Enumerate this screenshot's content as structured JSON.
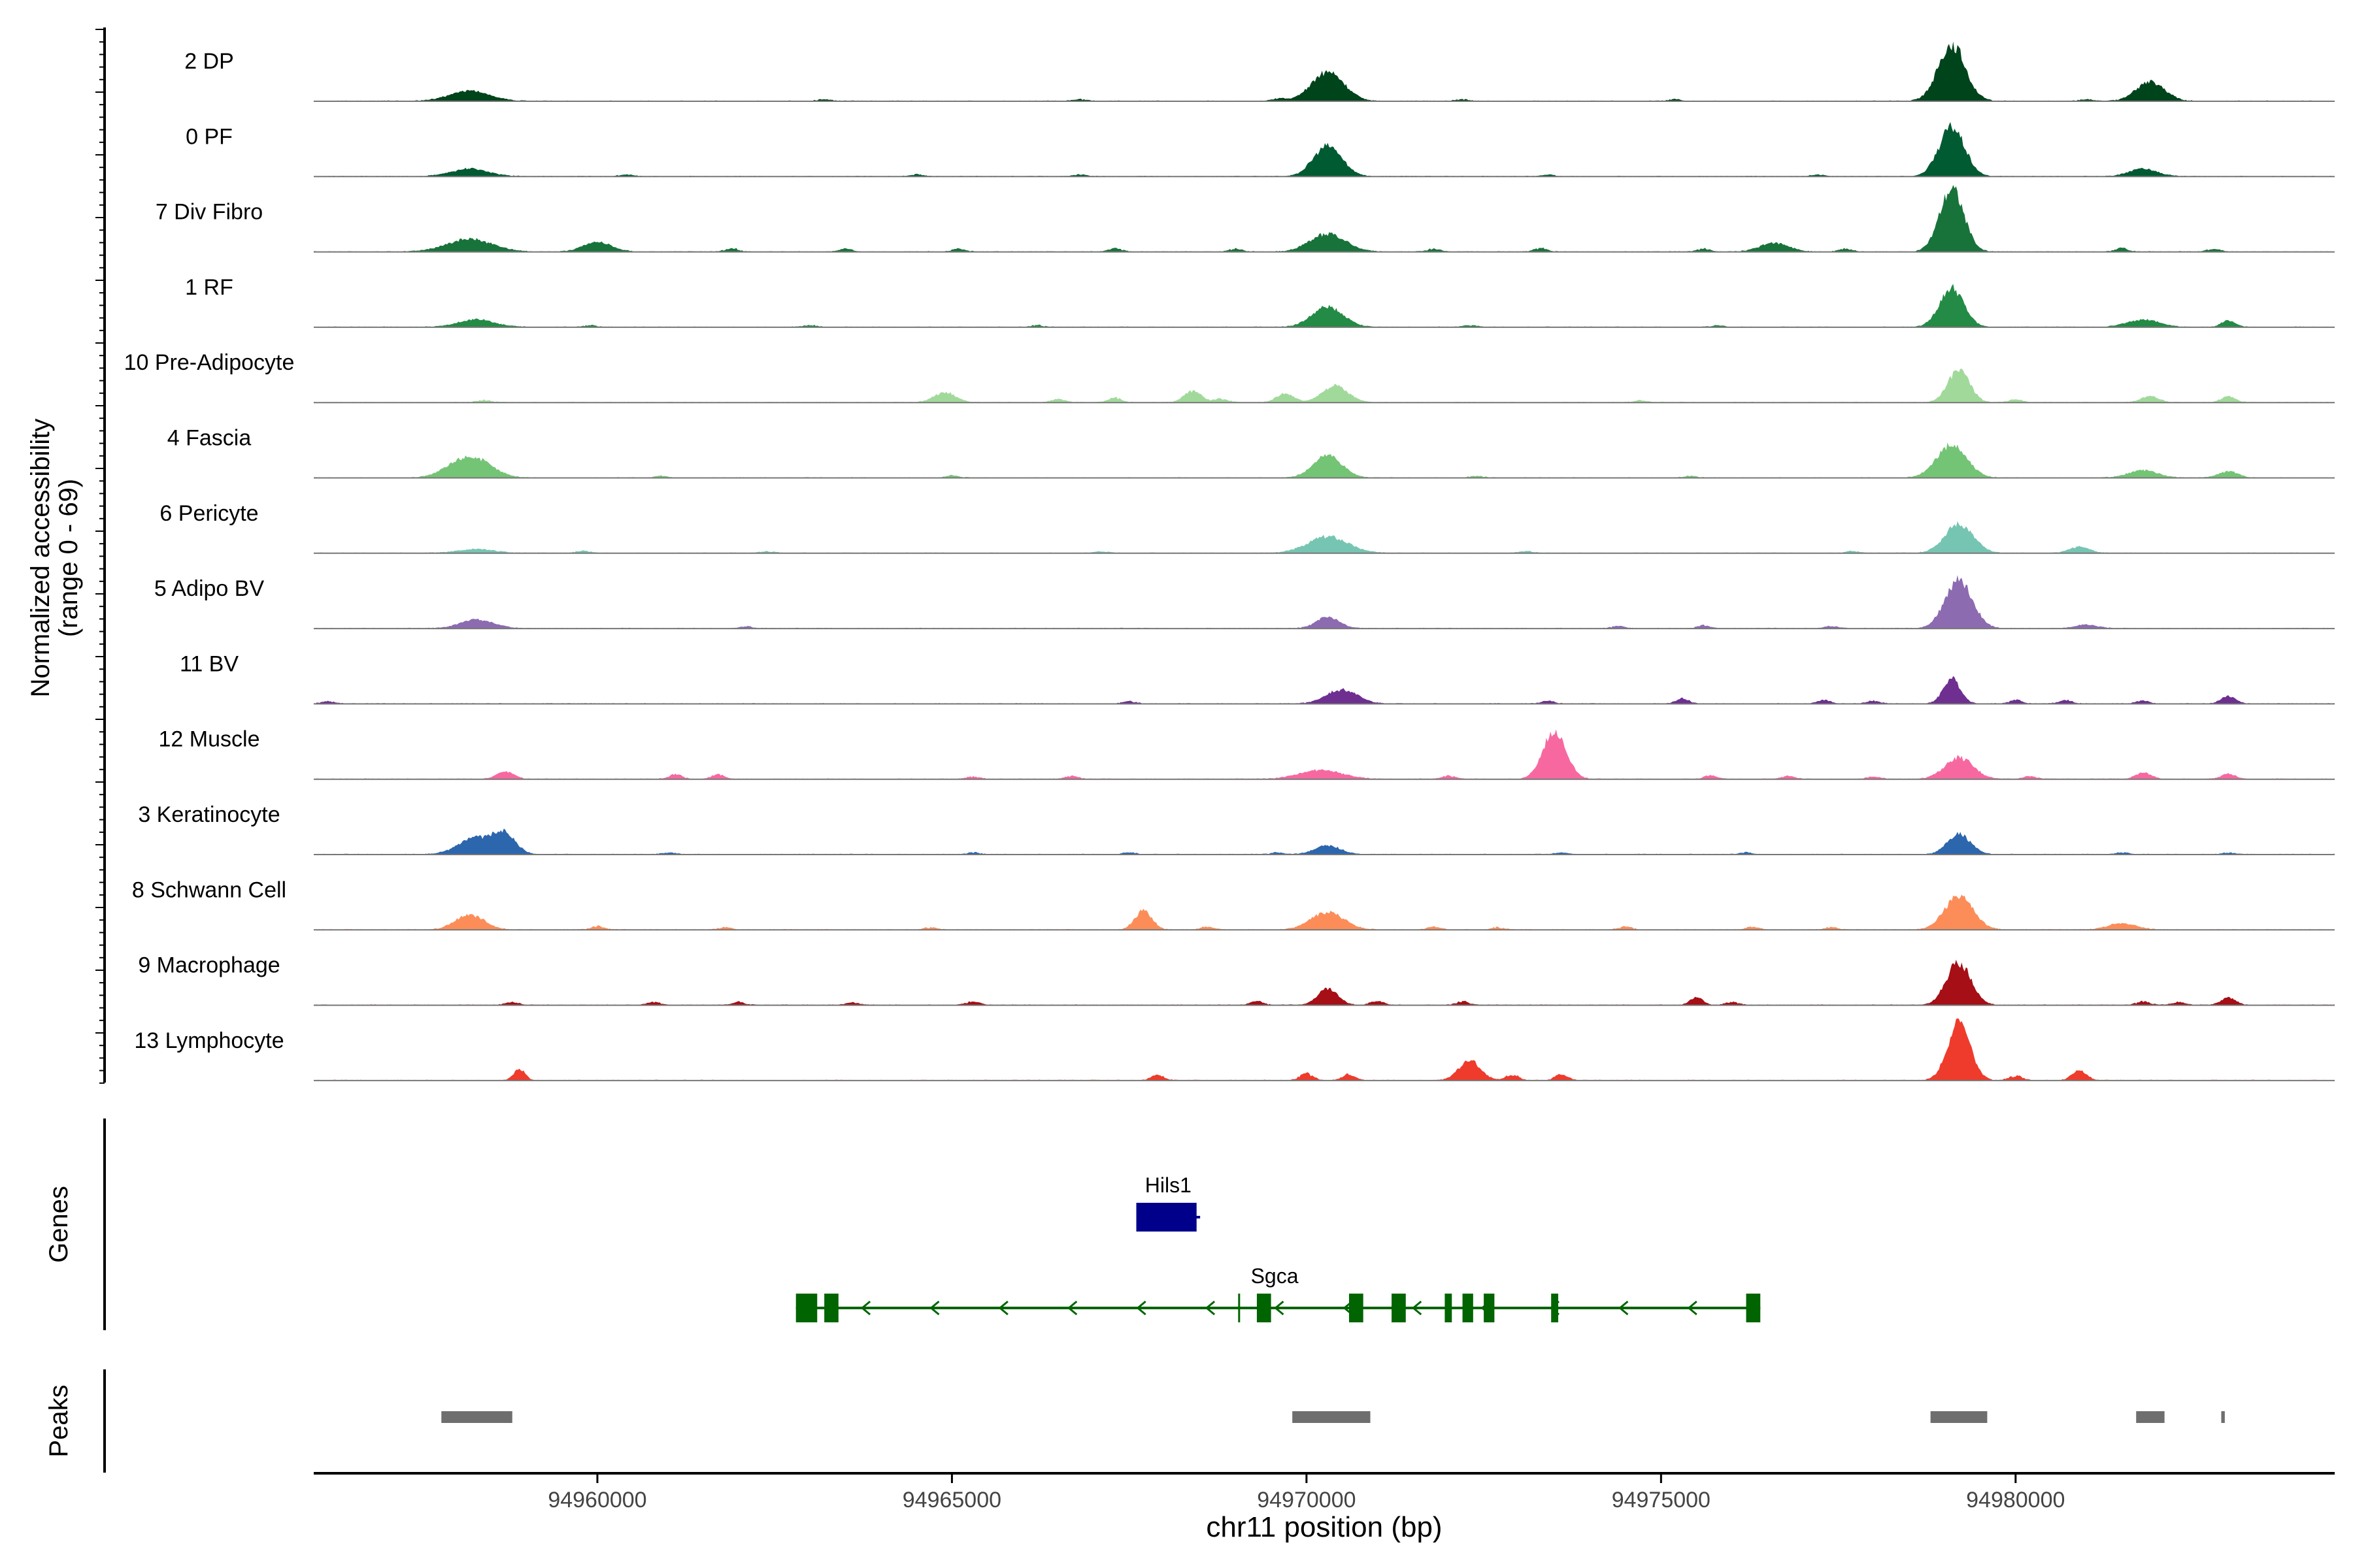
{
  "chart_data": {
    "type": "area",
    "title": "",
    "xlabel": "chr11 position (bp)",
    "ylabel": "Normalized accessibility\n(range 0 - 69)",
    "ylabel_lines": [
      "Normalized accessibility",
      "(range 0 - 69)"
    ],
    "yrange": [
      0,
      69
    ],
    "xlim": [
      94956000,
      94984500
    ],
    "x_ticks": [
      94960000,
      94965000,
      94970000,
      94975000,
      94980000
    ],
    "x_tick_labels": [
      "94960000",
      "94965000",
      "94970000",
      "94975000",
      "94980000"
    ],
    "panel_labels": {
      "genes": "Genes",
      "peaks": "Peaks"
    },
    "tracks": [
      {
        "name": "2 DP",
        "color": "#00441b",
        "peaks": [
          [
            94958200,
            16,
            280
          ],
          [
            94970300,
            46,
            230
          ],
          [
            94979100,
            90,
            190
          ],
          [
            94981900,
            30,
            200
          ]
        ],
        "noise": [
          [
            94963200,
            3
          ],
          [
            94966800,
            3
          ],
          [
            94969600,
            4
          ],
          [
            94972200,
            3
          ],
          [
            94975200,
            3
          ],
          [
            94981000,
            3
          ]
        ]
      },
      {
        "name": "0 PF",
        "color": "#005a32",
        "peaks": [
          [
            94958200,
            12,
            260
          ],
          [
            94970300,
            48,
            200
          ],
          [
            94979100,
            78,
            180
          ],
          [
            94981800,
            12,
            200
          ]
        ],
        "noise": [
          [
            94960400,
            3
          ],
          [
            94964500,
            3
          ],
          [
            94966800,
            3
          ],
          [
            94973400,
            3
          ],
          [
            94977200,
            3
          ]
        ]
      },
      {
        "name": "7 Div Fibro",
        "color": "#18733b",
        "peaks": [
          [
            94958200,
            20,
            320
          ],
          [
            94960000,
            15,
            200
          ],
          [
            94970300,
            28,
            250
          ],
          [
            94979100,
            100,
            170
          ],
          [
            94976600,
            14,
            200
          ]
        ],
        "noise": [
          [
            94961900,
            6
          ],
          [
            94963500,
            5
          ],
          [
            94965100,
            5
          ],
          [
            94967300,
            6
          ],
          [
            94969000,
            5
          ],
          [
            94971800,
            5
          ],
          [
            94973300,
            6
          ],
          [
            94975600,
            5
          ],
          [
            94977600,
            5
          ],
          [
            94981500,
            6
          ],
          [
            94982800,
            5
          ]
        ]
      },
      {
        "name": "1 RF",
        "color": "#238b45",
        "peaks": [
          [
            94958300,
            12,
            250
          ],
          [
            94970300,
            32,
            220
          ],
          [
            94979100,
            62,
            170
          ],
          [
            94981800,
            12,
            220
          ],
          [
            94983000,
            10,
            100
          ]
        ],
        "noise": [
          [
            94959900,
            3
          ],
          [
            94963000,
            3
          ],
          [
            94966200,
            3
          ],
          [
            94972300,
            3
          ],
          [
            94975800,
            3
          ]
        ]
      },
      {
        "name": "10 Pre-Adipocyte",
        "color": "#a1d99b",
        "peaks": [
          [
            94964900,
            16,
            150
          ],
          [
            94968400,
            18,
            120
          ],
          [
            94969700,
            14,
            120
          ],
          [
            94970400,
            26,
            180
          ],
          [
            94979200,
            52,
            150
          ],
          [
            94981900,
            10,
            120
          ],
          [
            94983000,
            9,
            100
          ]
        ],
        "noise": [
          [
            94958400,
            4
          ],
          [
            94966500,
            6
          ],
          [
            94967300,
            8
          ],
          [
            94968800,
            6
          ],
          [
            94974700,
            3
          ],
          [
            94980000,
            5
          ]
        ]
      },
      {
        "name": "4 Fascia",
        "color": "#74c476",
        "peaks": [
          [
            94958200,
            34,
            280
          ],
          [
            94970300,
            36,
            200
          ],
          [
            94979100,
            52,
            210
          ],
          [
            94981800,
            12,
            200
          ],
          [
            94983000,
            10,
            140
          ]
        ],
        "noise": [
          [
            94965000,
            4
          ],
          [
            94960900,
            3
          ],
          [
            94972400,
            3
          ],
          [
            94975400,
            3
          ]
        ]
      },
      {
        "name": "6 Pericyte",
        "color": "#76c5b2",
        "peaks": [
          [
            94958300,
            6,
            250
          ],
          [
            94970300,
            26,
            280
          ],
          [
            94979200,
            46,
            200
          ],
          [
            94980900,
            10,
            140
          ]
        ],
        "noise": [
          [
            94959800,
            4
          ],
          [
            94962400,
            3
          ],
          [
            94967100,
            3
          ],
          [
            94973100,
            3
          ],
          [
            94977700,
            3
          ]
        ]
      },
      {
        "name": "5 Adipo BV",
        "color": "#8c6bb1",
        "peaks": [
          [
            94958300,
            14,
            230
          ],
          [
            94970300,
            18,
            160
          ],
          [
            94979200,
            78,
            190
          ],
          [
            94981000,
            6,
            150
          ]
        ],
        "noise": [
          [
            94974400,
            4
          ],
          [
            94975600,
            5
          ],
          [
            94977400,
            4
          ],
          [
            94962100,
            3
          ]
        ]
      },
      {
        "name": "11 BV",
        "color": "#6e2f91",
        "peaks": [
          [
            94970500,
            22,
            220
          ],
          [
            94979100,
            40,
            120
          ],
          [
            94983000,
            12,
            100
          ]
        ],
        "noise": [
          [
            94956200,
            4
          ],
          [
            94967500,
            4
          ],
          [
            94973400,
            5
          ],
          [
            94975300,
            9
          ],
          [
            94977300,
            6
          ],
          [
            94978000,
            5
          ],
          [
            94980000,
            6
          ],
          [
            94980700,
            6
          ],
          [
            94981800,
            5
          ]
        ]
      },
      {
        "name": "12 Muscle",
        "color": "#f768a1",
        "peaks": [
          [
            94973500,
            78,
            160
          ],
          [
            94958700,
            12,
            120
          ],
          [
            94979200,
            34,
            200
          ],
          [
            94970200,
            14,
            300
          ],
          [
            94981800,
            10,
            110
          ],
          [
            94983000,
            8,
            100
          ]
        ],
        "noise": [
          [
            94961100,
            8
          ],
          [
            94961700,
            8
          ],
          [
            94965300,
            4
          ],
          [
            94966700,
            5
          ],
          [
            94972000,
            5
          ],
          [
            94975700,
            6
          ],
          [
            94976800,
            5
          ],
          [
            94978000,
            4
          ],
          [
            94980200,
            5
          ]
        ]
      },
      {
        "name": "3 Keratinocyte",
        "color": "#2c66ad",
        "peaks": [
          [
            94958300,
            26,
            250
          ],
          [
            94958700,
            30,
            150
          ],
          [
            94970300,
            14,
            180
          ],
          [
            94979200,
            32,
            160
          ]
        ],
        "noise": [
          [
            94961000,
            3
          ],
          [
            94965300,
            3
          ],
          [
            94967500,
            3
          ],
          [
            94969600,
            3
          ],
          [
            94973600,
            3
          ],
          [
            94976200,
            3
          ],
          [
            94981500,
            3
          ],
          [
            94983000,
            3
          ]
        ]
      },
      {
        "name": "8 Schwann Cell",
        "color": "#fc8d59",
        "peaks": [
          [
            94958200,
            24,
            200
          ],
          [
            94967700,
            30,
            120
          ],
          [
            94970300,
            28,
            230
          ],
          [
            94979200,
            54,
            200
          ],
          [
            94981500,
            10,
            200
          ]
        ],
        "noise": [
          [
            94960000,
            6
          ],
          [
            94961800,
            4
          ],
          [
            94964700,
            4
          ],
          [
            94968600,
            5
          ],
          [
            94971800,
            5
          ],
          [
            94972700,
            4
          ],
          [
            94974500,
            5
          ],
          [
            94976300,
            5
          ],
          [
            94977400,
            4
          ]
        ]
      },
      {
        "name": "9 Macrophage",
        "color": "#a50f15",
        "peaks": [
          [
            94970300,
            26,
            140
          ],
          [
            94979200,
            68,
            170
          ],
          [
            94975500,
            12,
            90
          ],
          [
            94983000,
            12,
            100
          ]
        ],
        "noise": [
          [
            94958800,
            5
          ],
          [
            94960800,
            5
          ],
          [
            94962000,
            5
          ],
          [
            94963600,
            4
          ],
          [
            94965300,
            6
          ],
          [
            94969300,
            7
          ],
          [
            94971000,
            8
          ],
          [
            94972200,
            6
          ],
          [
            94976000,
            5
          ],
          [
            94981800,
            6
          ],
          [
            94982300,
            5
          ]
        ]
      },
      {
        "name": "13 Lymphocyte",
        "color": "#ef3b2c",
        "peaks": [
          [
            94958900,
            18,
            80
          ],
          [
            94972300,
            32,
            150
          ],
          [
            94979200,
            90,
            160
          ],
          [
            94980900,
            16,
            100
          ]
        ],
        "noise": [
          [
            94967900,
            10
          ],
          [
            94970000,
            12
          ],
          [
            94970600,
            10
          ],
          [
            94972900,
            10
          ],
          [
            94973600,
            10
          ],
          [
            94980000,
            8
          ]
        ]
      }
    ],
    "genes": [
      {
        "name": "Hils1",
        "strand": "+",
        "color": "#00008b",
        "start": 94967600,
        "end": 94968500,
        "exons": [
          [
            94967600,
            94968450
          ]
        ]
      },
      {
        "name": "Sgca",
        "strand": "-",
        "color": "#006400",
        "start": 94962800,
        "end": 94976400,
        "exons": [
          [
            94962800,
            94963100
          ],
          [
            94963200,
            94963400
          ],
          [
            94969300,
            94969500
          ],
          [
            94970600,
            94970800
          ],
          [
            94971200,
            94971400
          ],
          [
            94971950,
            94972050
          ],
          [
            94972200,
            94972350
          ],
          [
            94972500,
            94972650
          ],
          [
            94973450,
            94973550
          ],
          [
            94976200,
            94976400
          ]
        ],
        "tss_tick": 94969050
      }
    ],
    "peaks_track": {
      "color": "#6e6e6e",
      "regions": [
        [
          94957800,
          94958800
        ],
        [
          94969800,
          94970900
        ],
        [
          94978800,
          94979600
        ],
        [
          94981700,
          94982100
        ],
        [
          94982900,
          94982950
        ]
      ]
    }
  }
}
